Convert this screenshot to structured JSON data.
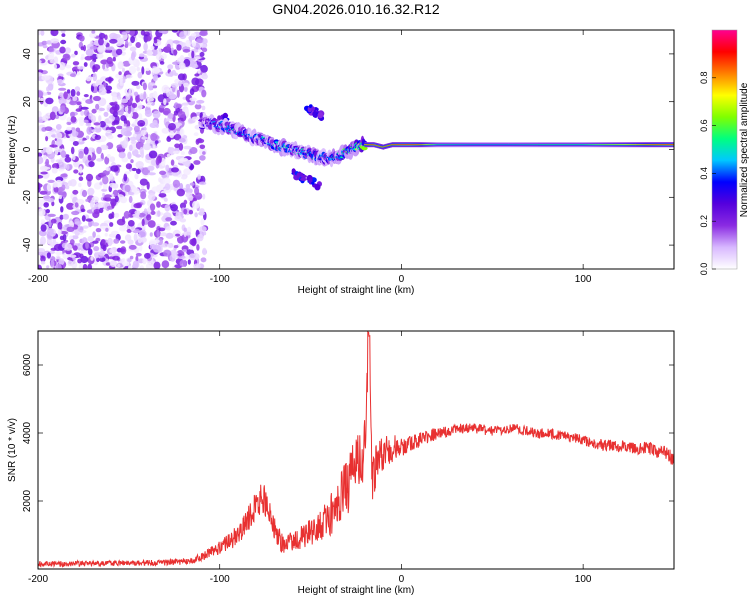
{
  "figure": {
    "title": "GN04.2026.010.16.32.R12"
  },
  "chart_data": [
    {
      "type": "heatmap",
      "title": "GN04.2026.010.16.32.R12",
      "xlabel": "Height of straight line (km)",
      "ylabel": "Frequency (Hz)",
      "xlim": [
        -200,
        150
      ],
      "ylim": [
        -50,
        50
      ],
      "xticks": [
        "-200",
        "-100",
        "0",
        "100"
      ],
      "xtick_values": [
        -200,
        -100,
        0,
        100
      ],
      "yticks": [
        "40",
        "20",
        "0",
        "-20",
        "-40"
      ],
      "ytick_values": [
        40,
        20,
        0,
        -20,
        -40
      ],
      "colorbar": {
        "label": "Normalized spectral amplitude",
        "range": [
          0,
          1
        ],
        "ticks": [
          "0.0",
          "0.2",
          "0.4",
          "0.6",
          "0.8"
        ],
        "tick_values": [
          0.0,
          0.2,
          0.4,
          0.6,
          0.8
        ],
        "colors": [
          "#ffffff",
          "#d8b8ff",
          "#8a2be2",
          "#5500dd",
          "#0000ff",
          "#00c8ff",
          "#00ff80",
          "#80ff00",
          "#ffff00",
          "#ff8000",
          "#ff0000",
          "#ff0090"
        ]
      },
      "noise_region": {
        "x": [
          -200,
          -108
        ],
        "y": [
          -50,
          50
        ],
        "amplitude": [
          0.02,
          0.25
        ]
      },
      "ridge": [
        {
          "x": -110,
          "y": 12,
          "amp": 0.25
        },
        {
          "x": -105,
          "y": 11,
          "amp": 0.4
        },
        {
          "x": -100,
          "y": 10,
          "amp": 0.45
        },
        {
          "x": -95,
          "y": 9,
          "amp": 0.5
        },
        {
          "x": -90,
          "y": 8,
          "amp": 0.45
        },
        {
          "x": -85,
          "y": 6,
          "amp": 0.4
        },
        {
          "x": -80,
          "y": 5,
          "amp": 0.4
        },
        {
          "x": -75,
          "y": 4,
          "amp": 0.45
        },
        {
          "x": -70,
          "y": 2,
          "amp": 0.45
        },
        {
          "x": -65,
          "y": 1,
          "amp": 0.5
        },
        {
          "x": -60,
          "y": 0,
          "amp": 0.45
        },
        {
          "x": -55,
          "y": -1,
          "amp": 0.45
        },
        {
          "x": -50,
          "y": -2,
          "amp": 0.5
        },
        {
          "x": -45,
          "y": -3,
          "amp": 0.45
        },
        {
          "x": -40,
          "y": -4,
          "amp": 0.45
        },
        {
          "x": -35,
          "y": -3,
          "amp": 0.5
        },
        {
          "x": -30,
          "y": -1,
          "amp": 0.55
        },
        {
          "x": -25,
          "y": 1,
          "amp": 0.6
        },
        {
          "x": -20,
          "y": 2,
          "amp": 0.8
        },
        {
          "x": -15,
          "y": 2,
          "amp": 0.9
        },
        {
          "x": -10,
          "y": 1,
          "amp": 0.85
        },
        {
          "x": -5,
          "y": 2,
          "amp": 0.85
        },
        {
          "x": 0,
          "y": 2,
          "amp": 0.9
        },
        {
          "x": 5,
          "y": 2,
          "amp": 0.9
        },
        {
          "x": 10,
          "y": 2,
          "amp": 0.85
        },
        {
          "x": 20,
          "y": 2,
          "amp": 0.55
        },
        {
          "x": 40,
          "y": 2,
          "amp": 0.5
        },
        {
          "x": 60,
          "y": 2,
          "amp": 0.5
        },
        {
          "x": 80,
          "y": 2,
          "amp": 0.55
        },
        {
          "x": 100,
          "y": 2,
          "amp": 0.55
        },
        {
          "x": 120,
          "y": 2,
          "amp": 0.7
        },
        {
          "x": 140,
          "y": 2,
          "amp": 0.85
        },
        {
          "x": 150,
          "y": 2,
          "amp": 0.9
        }
      ],
      "side_bands": [
        {
          "x": [
            -60,
            -45
          ],
          "y": [
            -10,
            -15
          ],
          "amp": 0.35
        },
        {
          "x": [
            -52,
            -44
          ],
          "y": [
            18,
            14
          ],
          "amp": 0.3
        },
        {
          "x": [
            -110,
            -96
          ],
          "y": [
            10,
            14
          ],
          "amp": 0.3
        }
      ]
    },
    {
      "type": "line",
      "title": "",
      "xlabel": "Height of straight line (km)",
      "ylabel": "SNR (10 * v/v)",
      "xlim": [
        -200,
        150
      ],
      "ylim": [
        0,
        7000
      ],
      "xticks": [
        "-200",
        "-100",
        "0",
        "100"
      ],
      "xtick_values": [
        -200,
        -100,
        0,
        100
      ],
      "yticks": [
        "2000",
        "4000",
        "6000"
      ],
      "ytick_values": [
        2000,
        4000,
        6000
      ],
      "series": [
        {
          "name": "SNR",
          "color": "#e83030",
          "x": [
            -200,
            -180,
            -160,
            -140,
            -125,
            -115,
            -110,
            -105,
            -100,
            -95,
            -90,
            -85,
            -80,
            -76,
            -72,
            -68,
            -64,
            -60,
            -56,
            -52,
            -48,
            -44,
            -40,
            -36,
            -32,
            -28,
            -25,
            -22,
            -20,
            -18,
            -16,
            -14,
            -12,
            -10,
            -8,
            -6,
            -4,
            -2,
            0,
            5,
            10,
            15,
            20,
            25,
            30,
            35,
            40,
            45,
            50,
            55,
            60,
            65,
            70,
            75,
            80,
            85,
            90,
            95,
            100,
            105,
            110,
            115,
            120,
            125,
            130,
            135,
            140,
            145,
            150
          ],
          "y": [
            150,
            160,
            170,
            180,
            200,
            250,
            350,
            500,
            650,
            800,
            1000,
            1400,
            1800,
            2100,
            1500,
            900,
            700,
            800,
            900,
            1000,
            1100,
            1300,
            1500,
            1900,
            2300,
            2600,
            3000,
            3300,
            3600,
            6800,
            2400,
            3000,
            3200,
            3400,
            3500,
            3300,
            3700,
            3500,
            3600,
            3700,
            3800,
            3900,
            4000,
            4050,
            4100,
            4150,
            4150,
            4100,
            4050,
            4100,
            4150,
            4100,
            4050,
            4000,
            4000,
            3950,
            3900,
            3850,
            3800,
            3700,
            3650,
            3650,
            3600,
            3600,
            3550,
            3550,
            3500,
            3400,
            3200
          ],
          "noise_amplitude": [
            80,
            80,
            80,
            80,
            90,
            100,
            120,
            150,
            200,
            250,
            300,
            400,
            500,
            500,
            450,
            350,
            300,
            300,
            350,
            400,
            450,
            500,
            600,
            700,
            800,
            900,
            900,
            900,
            900,
            200,
            900,
            700,
            600,
            500,
            450,
            400,
            350,
            300,
            300,
            250,
            220,
            200,
            180,
            160,
            150,
            150,
            150,
            150,
            150,
            150,
            150,
            150,
            150,
            150,
            150,
            150,
            150,
            150,
            160,
            160,
            170,
            170,
            180,
            180,
            190,
            190,
            200,
            220,
            250
          ]
        }
      ]
    }
  ]
}
